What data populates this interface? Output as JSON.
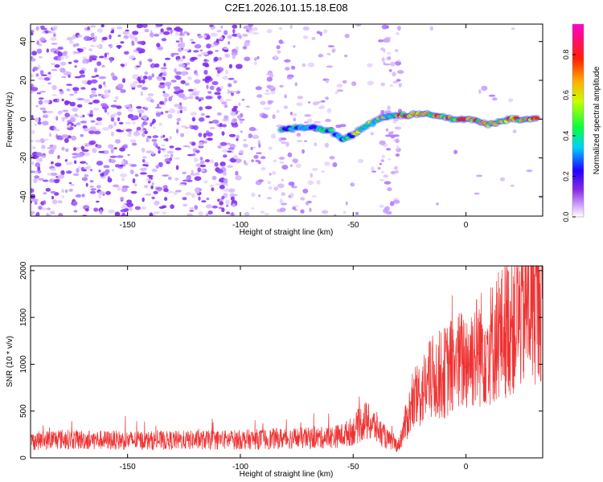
{
  "figure_title": "C2E1.2026.101.15.18.E08",
  "chart_data": [
    {
      "type": "heatmap",
      "title": "C2E1.2026.101.15.18.E08",
      "xlabel": "Height of straight line (km)",
      "ylabel": "Frequency (Hz)",
      "xlim": [
        -193,
        34
      ],
      "ylim": [
        -50,
        49
      ],
      "xticks": [
        -150,
        -100,
        -50,
        0
      ],
      "yticks": [
        -40,
        -20,
        0,
        20,
        40
      ],
      "colorbar": {
        "label": "Normalized spectral amplitude",
        "range": [
          0,
          0.95
        ],
        "ticks": [
          0.0,
          0.2,
          0.4,
          0.6,
          0.8
        ],
        "colormap": [
          "#ffffff",
          "#8a2be2",
          "#0000ff",
          "#00ffff",
          "#00ff00",
          "#ffff00",
          "#ff8000",
          "#ff0000",
          "#ff00ff"
        ]
      },
      "ridge": {
        "description": "frequency of strongest component vs height",
        "x": [
          -80,
          -70,
          -60,
          -55,
          -50,
          -45,
          -40,
          -35,
          -30,
          -25,
          -20,
          -15,
          -10,
          -5,
          0,
          5,
          10,
          15,
          20,
          25,
          30
        ],
        "y": [
          -5,
          -4,
          -6,
          -10,
          -8,
          -4,
          -1,
          1,
          2,
          2,
          3,
          2,
          1,
          0,
          0,
          -1,
          -3,
          -1,
          0,
          0,
          0
        ]
      }
    },
    {
      "type": "line",
      "xlabel": "Height of straight line (km)",
      "ylabel": "SNR (10 * v/v)",
      "xlim": [
        -193,
        34
      ],
      "ylim": [
        0,
        2050
      ],
      "xticks": [
        -150,
        -100,
        -50,
        0
      ],
      "yticks": [
        0,
        500,
        1000,
        1500,
        2000
      ],
      "color": "#ee3333",
      "series": [
        {
          "name": "SNR",
          "x": [
            -193,
            -180,
            -160,
            -140,
            -120,
            -100,
            -90,
            -80,
            -70,
            -60,
            -55,
            -50,
            -45,
            -40,
            -35,
            -30,
            -25,
            -20,
            -15,
            -10,
            -5,
            0,
            5,
            10,
            15,
            20,
            25,
            30,
            34
          ],
          "y": [
            180,
            200,
            190,
            185,
            190,
            195,
            200,
            210,
            210,
            220,
            240,
            290,
            400,
            330,
            200,
            130,
            500,
            700,
            850,
            900,
            1000,
            1050,
            1150,
            1200,
            1300,
            1450,
            1550,
            1700,
            1800
          ]
        }
      ]
    }
  ]
}
